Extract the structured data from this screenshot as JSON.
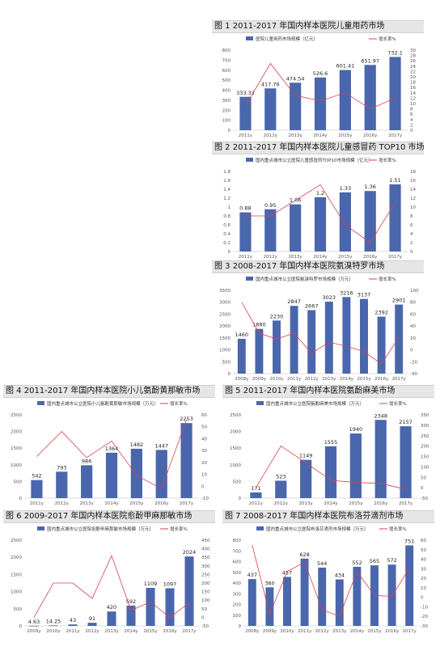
{
  "charts": [
    {
      "title": "图 1  2011-2017 年国内样本医院儿童用药市场",
      "legend_bar": "医院儿童用药市场规模（亿元）",
      "legend_line": "增长率%",
      "chart_data": {
        "type": "bar",
        "categories": [
          "2011y",
          "2012y",
          "2013y",
          "2014y",
          "2015y",
          "2016y",
          "2017y"
        ],
        "values": [
          333.33,
          417.76,
          474.54,
          526.6,
          601.41,
          651.97,
          732.1
        ],
        "value_labels": [
          "333.33",
          "417.76",
          "474.54",
          "526.6",
          "601.41",
          "651.97",
          "732.1"
        ],
        "growth": [
          9,
          25,
          13,
          11,
          14,
          8,
          12
        ],
        "ylim": [
          0,
          800
        ],
        "y_ticks": [
          "0",
          "100",
          "200",
          "300",
          "400",
          "500",
          "600",
          "700",
          "800"
        ],
        "y2lim": [
          0,
          30
        ],
        "y2_ticks": [
          "0",
          "2",
          "4",
          "6",
          "8",
          "10",
          "12",
          "14",
          "16",
          "18",
          "20",
          "22",
          "24",
          "26",
          "28",
          "30"
        ],
        "bar_color": "#4a67ad",
        "line_color": "#d9414d"
      }
    },
    {
      "title": "图 2  2011-2017 年国内样本医院儿童感冒药 TOP10 市场",
      "legend_bar": "国内重点城市公立医院儿童感冒药TOP10市场规模（亿元）",
      "legend_line": "增长率%",
      "chart_data": {
        "type": "bar",
        "categories": [
          "2011y",
          "2012y",
          "2013y",
          "2014y",
          "2015y",
          "2016y",
          "2017y"
        ],
        "values": [
          0.88,
          0.95,
          1.06,
          1.22,
          1.33,
          1.36,
          1.51
        ],
        "value_labels": [
          "0.88",
          "0.95",
          "1.06",
          "1.2",
          "1.33",
          "1.36",
          "1.51"
        ],
        "growth": [
          8,
          8,
          11.5,
          15,
          6,
          2,
          11
        ],
        "ylim": [
          0,
          1.8
        ],
        "y_ticks": [
          "0",
          "0.2",
          "0.4",
          "0.6",
          "0.8",
          "1",
          "1.2",
          "1.4",
          "1.6",
          "1.8"
        ],
        "y2lim": [
          0,
          18
        ],
        "y2_ticks": [
          "0",
          "2",
          "4",
          "6",
          "8",
          "10",
          "12",
          "14",
          "16",
          "18"
        ],
        "bar_color": "#4a67ad",
        "line_color": "#d9414d"
      }
    },
    {
      "title": "图 3  2008-2017 年国内样本医院氨溴特罗市场",
      "legend_bar": "国内重点城市公立医院氨溴特罗市场规模（万元）",
      "legend_line": "增长率%",
      "chart_data": {
        "type": "bar",
        "categories": [
          "2008y",
          "2009y",
          "2010y",
          "2011y",
          "2012y",
          "2013y",
          "2014y",
          "2015y",
          "2016y",
          "2017y"
        ],
        "values": [
          1460,
          1880,
          2230,
          2847,
          2667,
          3023,
          3216,
          3137,
          2392,
          2901
        ],
        "value_labels": [
          "1460",
          "1880",
          "2230",
          "2847",
          "2667",
          "3023",
          "3216",
          "3137",
          "2392",
          "2901"
        ],
        "growth": [
          80,
          28,
          18,
          28,
          -6,
          13,
          6,
          -3,
          -24,
          21
        ],
        "ylim": [
          0,
          3500
        ],
        "y_ticks": [
          "0",
          "500",
          "1000",
          "1500",
          "2000",
          "2500",
          "3000",
          "3500"
        ],
        "y2lim": [
          -40,
          100
        ],
        "y2_ticks": [
          "-40",
          "-20",
          "0",
          "20",
          "40",
          "60",
          "80",
          "100"
        ],
        "bar_color": "#4a67ad",
        "line_color": "#d9414d"
      }
    },
    {
      "title": "图 4  2011-2017 年国内样本医院小儿氨酚黄那敏市场",
      "legend_bar": "国内重点城市公立医院小儿氨酚黄那敏市场规模（万元）",
      "legend_line": "增长率%",
      "chart_data": {
        "type": "bar",
        "categories": [
          "2011y",
          "2012y",
          "2013y",
          "2014y",
          "2015y",
          "2016y",
          "2017y"
        ],
        "values": [
          542,
          793,
          986,
          1364,
          1482,
          1447,
          2253
        ],
        "value_labels": [
          "542",
          "793",
          "986",
          "1364",
          "1482",
          "1447",
          "2253"
        ],
        "growth": [
          25,
          46,
          24,
          38,
          9,
          -2,
          56
        ],
        "ylim": [
          0,
          2500
        ],
        "y_ticks": [
          "0",
          "500",
          "1000",
          "1500",
          "2000",
          "2500"
        ],
        "y2lim": [
          -10,
          60
        ],
        "y2_ticks": [
          "-10",
          "0",
          "10",
          "20",
          "30",
          "40",
          "50",
          "60"
        ],
        "bar_color": "#4a67ad",
        "line_color": "#d9414d"
      }
    },
    {
      "title": "图 5  2011-2017 年国内样本医院氨酚麻美市场",
      "legend_bar": "国内重点城市公立医院氨酚麻美市场规模（万元）",
      "legend_line": "增长率%",
      "chart_data": {
        "type": "bar",
        "categories": [
          "2011y",
          "2012y",
          "2013y",
          "2014y",
          "2015y",
          "2016y",
          "2017y"
        ],
        "values": [
          171,
          523,
          1149,
          1555,
          1940,
          2348,
          2157
        ],
        "value_labels": [
          "171",
          "523",
          "1149",
          "1555",
          "1940",
          "2348",
          "2157"
        ],
        "growth": [
          0,
          200,
          120,
          36,
          25,
          21,
          -8
        ],
        "ylim": [
          0,
          2500
        ],
        "y_ticks": [
          "0",
          "500",
          "1000",
          "1500",
          "2000",
          "2500"
        ],
        "y2lim": [
          -50,
          350
        ],
        "y2_ticks": [
          "-50",
          "0",
          "50",
          "100",
          "150",
          "200",
          "250",
          "300",
          "350"
        ],
        "bar_color": "#4a67ad",
        "line_color": "#d9414d"
      }
    },
    {
      "title": "图 6  2009-2017 年国内样本医院愈酚甲麻那敏市场",
      "legend_bar": "国内重点城市公立医院愈酚甲麻那敏市场规模（万元）",
      "legend_line": "增长率%",
      "chart_data": {
        "type": "bar",
        "categories": [
          "2009y",
          "2010y",
          "2011y",
          "2012y",
          "2013y",
          "2014y",
          "2015y",
          "2016y",
          "2017y"
        ],
        "values": [
          4.63,
          14.25,
          43,
          91,
          420,
          592,
          1109,
          1097,
          2024
        ],
        "value_labels": [
          "4.63",
          "14.25",
          "43",
          "91",
          "420",
          "592",
          "1109",
          "1097",
          "2024"
        ],
        "growth": [
          0,
          200,
          200,
          110,
          360,
          40,
          90,
          -1,
          85
        ],
        "ylim": [
          0,
          2500
        ],
        "y_ticks": [
          "0",
          "500",
          "1000",
          "1500",
          "2000",
          "2500"
        ],
        "y2lim": [
          -50,
          450
        ],
        "y2_ticks": [
          "-50",
          "0",
          "50",
          "100",
          "150",
          "200",
          "250",
          "300",
          "350",
          "400",
          "450"
        ],
        "bar_color": "#4a67ad",
        "line_color": "#d9414d"
      }
    },
    {
      "title": "图 7  2008-2017 年国内样本医院布洛芬滴剂市场",
      "legend_bar": "国内重点城市公立医院布洛芬滴剂市场规模（万元）",
      "legend_line": "增长率%",
      "chart_data": {
        "type": "bar",
        "categories": [
          "2008y",
          "2009y",
          "2010y",
          "2011y",
          "2012y",
          "2013y",
          "2014y",
          "2015y",
          "2016y",
          "2017y"
        ],
        "values": [
          437,
          360,
          457,
          628,
          544,
          434,
          552,
          565,
          572,
          751
        ],
        "value_labels": [
          "437",
          "360",
          "457",
          "628",
          "544",
          "434",
          "552",
          "565",
          "572",
          "751"
        ],
        "growth": [
          55,
          -18,
          27,
          37,
          -13,
          -20,
          27,
          2,
          1,
          31
        ],
        "ylim": [
          0,
          800
        ],
        "y_ticks": [
          "0",
          "100",
          "200",
          "300",
          "400",
          "500",
          "600",
          "700",
          "800"
        ],
        "y2lim": [
          -30,
          60
        ],
        "y2_ticks": [
          "-30",
          "-20",
          "-10",
          "0",
          "10",
          "20",
          "30",
          "40",
          "50",
          "60"
        ],
        "bar_color": "#4a67ad",
        "line_color": "#d9414d"
      }
    }
  ]
}
